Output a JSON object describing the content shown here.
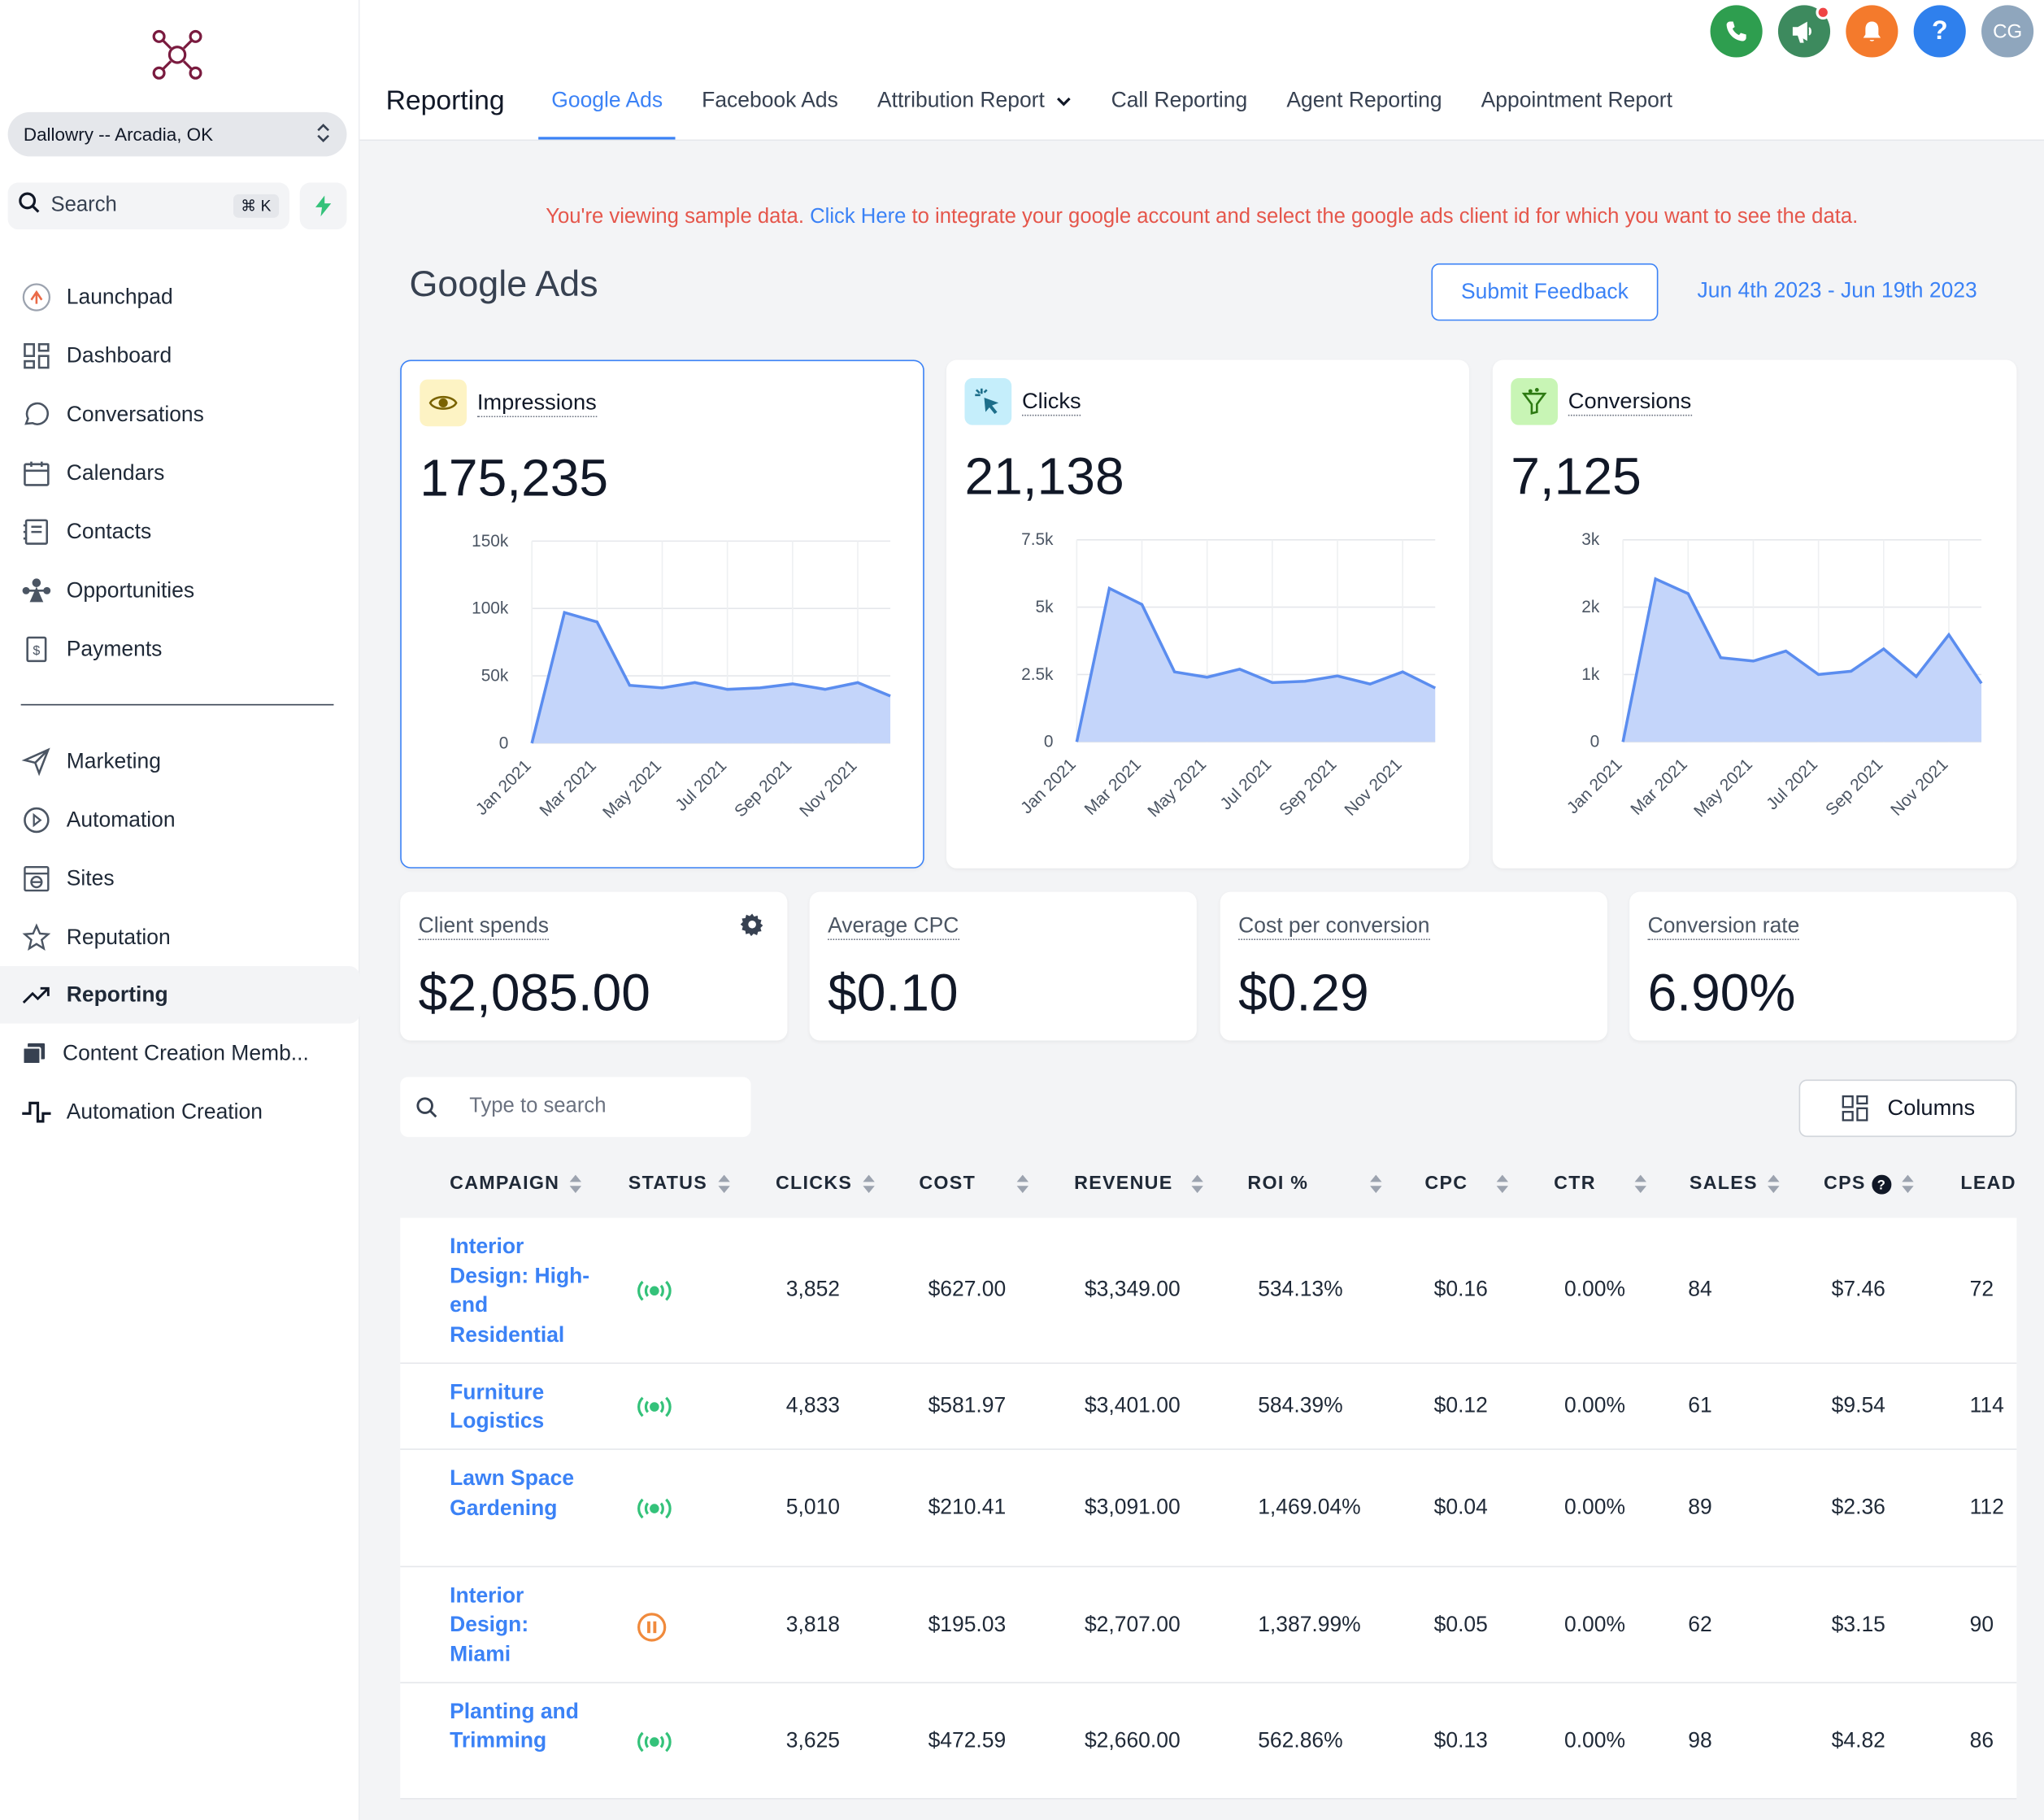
{
  "app": {
    "location": "Dallowry -- Arcadia, OK",
    "search_label": "Search",
    "search_shortcut": "⌘ K"
  },
  "sidebar": {
    "items": [
      {
        "label": "Launchpad",
        "icon": "launchpad-icon"
      },
      {
        "label": "Dashboard",
        "icon": "dashboard-icon"
      },
      {
        "label": "Conversations",
        "icon": "chat-icon"
      },
      {
        "label": "Calendars",
        "icon": "calendar-icon"
      },
      {
        "label": "Contacts",
        "icon": "contacts-icon"
      },
      {
        "label": "Opportunities",
        "icon": "opportunities-icon"
      },
      {
        "label": "Payments",
        "icon": "payments-icon"
      },
      {
        "label": "Marketing",
        "icon": "send-icon"
      },
      {
        "label": "Automation",
        "icon": "automation-icon"
      },
      {
        "label": "Sites",
        "icon": "sites-icon"
      },
      {
        "label": "Reputation",
        "icon": "star-icon"
      },
      {
        "label": "Reporting",
        "icon": "trending-icon"
      },
      {
        "label": "Content Creation Memb...",
        "icon": "content-icon"
      },
      {
        "label": "Automation Creation",
        "icon": "pulse-icon"
      }
    ],
    "active": "Reporting"
  },
  "header": {
    "title": "Reporting",
    "tabs": [
      "Google Ads",
      "Facebook Ads",
      "Attribution Report",
      "Call Reporting",
      "Agent Reporting",
      "Appointment Report"
    ],
    "active_tab": "Google Ads",
    "avatar": "CG",
    "help": "?"
  },
  "banner": {
    "text_before": "You're viewing sample data. ",
    "link": "Click Here",
    "text_after": " to integrate your google account and select the google ads client id for which you want to see the data."
  },
  "page": {
    "title": "Google Ads",
    "feedback_button": "Submit Feedback",
    "date_range": "Jun 4th 2023 - Jun 19th 2023"
  },
  "metrics": [
    {
      "label": "Impressions",
      "value": "175,235",
      "icon": "eye-icon",
      "icon_bg": "#fdf3c4"
    },
    {
      "label": "Clicks",
      "value": "21,138",
      "icon": "cursor-click-icon",
      "icon_bg": "#c5eefb"
    },
    {
      "label": "Conversions",
      "value": "7,125",
      "icon": "funnel-icon",
      "icon_bg": "#c8f5b5"
    }
  ],
  "chart_data": [
    {
      "type": "area",
      "x_ticks": [
        "Jan 2021",
        "Mar 2021",
        "May 2021",
        "Jul 2021",
        "Sep 2021",
        "Nov 2021"
      ],
      "y_ticks": [
        "0",
        "50k",
        "100k",
        "150k"
      ],
      "ylim": [
        0,
        150000
      ],
      "values": [
        0,
        97000,
        90000,
        43000,
        41000,
        45000,
        40000,
        41000,
        44000,
        40000,
        45000,
        35000
      ],
      "color": "#5b8def"
    },
    {
      "type": "area",
      "x_ticks": [
        "Jan 2021",
        "Mar 2021",
        "May 2021",
        "Jul 2021",
        "Sep 2021",
        "Nov 2021"
      ],
      "y_ticks": [
        "0",
        "2.5k",
        "5k",
        "7.5k"
      ],
      "ylim": [
        0,
        7500
      ],
      "values": [
        0,
        5700,
        5100,
        2600,
        2400,
        2700,
        2200,
        2250,
        2450,
        2150,
        2600,
        2000
      ],
      "color": "#5b8def"
    },
    {
      "type": "area",
      "x_ticks": [
        "Jan 2021",
        "Mar 2021",
        "May 2021",
        "Jul 2021",
        "Sep 2021",
        "Nov 2021"
      ],
      "y_ticks": [
        "0",
        "1k",
        "2k",
        "3k"
      ],
      "ylim": [
        0,
        3000
      ],
      "values": [
        0,
        2420,
        2200,
        1250,
        1200,
        1350,
        1000,
        1050,
        1380,
        970,
        1590,
        870
      ],
      "color": "#5b8def"
    }
  ],
  "stats": [
    {
      "label": "Client spends",
      "value": "$2,085.00"
    },
    {
      "label": "Average CPC",
      "value": "$0.10"
    },
    {
      "label": "Cost per conversion",
      "value": "$0.29"
    },
    {
      "label": "Conversion rate",
      "value": "6.90%"
    }
  ],
  "table": {
    "search_placeholder": "Type to search",
    "columns_button": "Columns",
    "headers": [
      "CAMPAIGN",
      "STATUS",
      "CLICKS",
      "COST",
      "REVENUE",
      "ROI %",
      "CPC",
      "CTR",
      "SALES",
      "CPS",
      "LEADS"
    ],
    "rows": [
      {
        "campaign": "Interior Design: High-end Residential",
        "status": "active",
        "clicks": "3,852",
        "cost": "$627.00",
        "revenue": "$3,349.00",
        "roi": "534.13%",
        "cpc": "$0.16",
        "ctr": "0.00%",
        "sales": "84",
        "cps": "$7.46",
        "leads": "72"
      },
      {
        "campaign": "Furniture Logistics",
        "status": "active",
        "clicks": "4,833",
        "cost": "$581.97",
        "revenue": "$3,401.00",
        "roi": "584.39%",
        "cpc": "$0.12",
        "ctr": "0.00%",
        "sales": "61",
        "cps": "$9.54",
        "leads": "114"
      },
      {
        "campaign": "Lawn Space Gardening",
        "status": "active",
        "clicks": "5,010",
        "cost": "$210.41",
        "revenue": "$3,091.00",
        "roi": "1,469.04%",
        "cpc": "$0.04",
        "ctr": "0.00%",
        "sales": "89",
        "cps": "$2.36",
        "leads": "112"
      },
      {
        "campaign": "Interior Design: Miami",
        "status": "paused",
        "clicks": "3,818",
        "cost": "$195.03",
        "revenue": "$2,707.00",
        "roi": "1,387.99%",
        "cpc": "$0.05",
        "ctr": "0.00%",
        "sales": "62",
        "cps": "$3.15",
        "leads": "90"
      },
      {
        "campaign": "Planting and Trimming",
        "status": "active",
        "clicks": "3,625",
        "cost": "$472.59",
        "revenue": "$2,660.00",
        "roi": "562.86%",
        "cpc": "$0.13",
        "ctr": "0.00%",
        "sales": "98",
        "cps": "$4.82",
        "leads": "86"
      }
    ]
  },
  "colors": {
    "accent": "#3b82f6",
    "banner_text": "#e5564b",
    "status_active": "#34c27a",
    "status_paused": "#f08a3c",
    "phone": "#2e9e4f",
    "megaphone": "#3d8a5e",
    "bell": "#f47a2c",
    "help": "#2f80ed",
    "avatar": "#8fa6bd"
  }
}
